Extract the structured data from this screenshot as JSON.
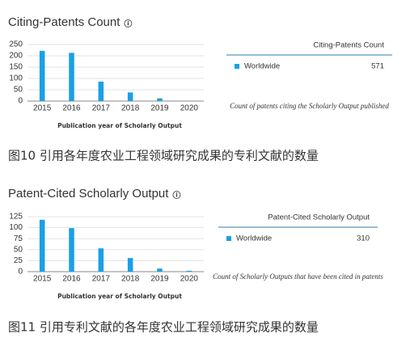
{
  "chart_data": [
    {
      "type": "bar",
      "title": "Citing-Patents Count",
      "xlabel": "Publication year of Scholarly Output",
      "categories": [
        "2015",
        "2016",
        "2017",
        "2018",
        "2019",
        "2020"
      ],
      "series": [
        {
          "name": "Worldwide",
          "color": "#1aa0e6",
          "values": [
            222,
            213,
            86,
            38,
            12,
            0
          ]
        }
      ],
      "ylim": [
        0,
        250
      ],
      "yticks": [
        0,
        50,
        100,
        150,
        200,
        250
      ],
      "grid": true,
      "panel_title": "Citing-Patents Count",
      "total": 571,
      "note": "Count of patents citing the Scholarly Output published",
      "caption": "图10 引用各年度农业工程领域研究成果的专利文献的数量"
    },
    {
      "type": "bar",
      "title": "Patent-Cited Scholarly Output",
      "xlabel": "Publication year of Scholarly Output",
      "categories": [
        "2015",
        "2016",
        "2017",
        "2018",
        "2019",
        "2020"
      ],
      "series": [
        {
          "name": "Worldwide",
          "color": "#1aa0e6",
          "values": [
            118,
            99,
            53,
            31,
            7,
            2
          ]
        }
      ],
      "ylim": [
        0,
        125
      ],
      "yticks": [
        0,
        25,
        50,
        75,
        100,
        125
      ],
      "grid": true,
      "panel_title": "Patent-Cited Scholarly Output",
      "total": 310,
      "note": "Count of Scholarly Outputs that have been cited in patents",
      "caption": "图11 引用专利文献的各年度农业工程领域研究成果的数量"
    }
  ]
}
